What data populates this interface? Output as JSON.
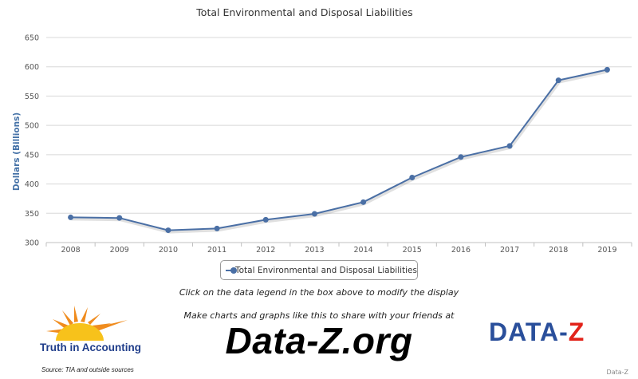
{
  "chart_data": {
    "type": "line",
    "title": "Total Environmental and Disposal Liabilities",
    "xlabel": "",
    "ylabel": "Dollars (Billions)",
    "x": [
      "2008",
      "2009",
      "2010",
      "2011",
      "2012",
      "2013",
      "2014",
      "2015",
      "2016",
      "2017",
      "2018",
      "2019"
    ],
    "series": [
      {
        "name": "Total Environmental and Disposal Liabilities",
        "values": [
          343,
          342,
          321,
          324,
          339,
          349,
          369,
          411,
          446,
          465,
          577,
          595
        ]
      }
    ],
    "ylim": [
      300,
      650
    ],
    "yticks": [
      300,
      350,
      400,
      450,
      500,
      550,
      600,
      650
    ],
    "grid": true,
    "legend": "bottom-center",
    "colors": {
      "series": "#4a6fa5",
      "grid": "#d8d8d8",
      "axis_title": "#4572a7"
    }
  },
  "legend_note": "Click on the data legend in the box above to modify the display",
  "promo_text": "Make charts and graphs like this to share with your friends at",
  "site_name": "Data-Z.org",
  "tia_name": "Truth in Accounting",
  "source": "Source: TIA and outside sources",
  "dataz_logo": {
    "left": "DATA-",
    "right": "Z"
  },
  "credit": "Data-Z"
}
